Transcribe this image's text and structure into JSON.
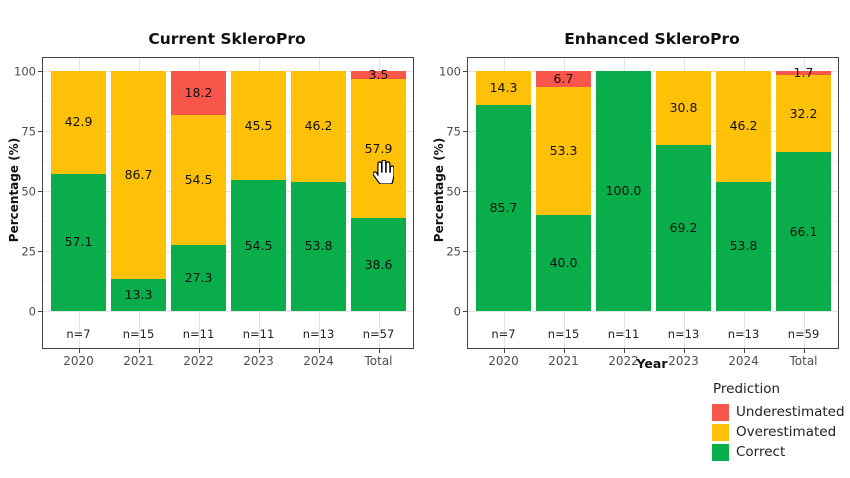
{
  "colors": {
    "correct": "#09ae4b",
    "overestimated": "#ffc107",
    "underestimated": "#f8564a",
    "grid_major": "#e4e4e4",
    "grid_minor": "#f3f3f3",
    "panel_border": "#454545",
    "tick_label": "#4d4d4d"
  },
  "legend": {
    "title": "Prediction",
    "items": [
      {
        "label": "Underestimated",
        "color_key": "underestimated"
      },
      {
        "label": "Overestimated",
        "color_key": "overestimated"
      },
      {
        "label": "Correct",
        "color_key": "correct"
      }
    ]
  },
  "icons": {
    "cursor": "open-hand-cursor"
  },
  "chart_data": [
    {
      "type": "bar",
      "stacked": true,
      "title": "Current SkleroPro",
      "xlabel": "",
      "ylabel": "Percentage (%)",
      "ylim": [
        0,
        100
      ],
      "yticks": [
        0,
        25,
        50,
        75,
        100
      ],
      "grid": true,
      "categories": [
        "2020",
        "2021",
        "2022",
        "2023",
        "2024",
        "Total"
      ],
      "n_labels": [
        "n=7",
        "n=15",
        "n=11",
        "n=11",
        "n=13",
        "n=57"
      ],
      "series": [
        {
          "name": "Correct",
          "color_key": "correct",
          "values": [
            57.1,
            13.3,
            27.3,
            54.5,
            53.8,
            38.6
          ]
        },
        {
          "name": "Overestimated",
          "color_key": "overestimated",
          "values": [
            42.9,
            86.7,
            54.5,
            45.5,
            46.2,
            57.9
          ]
        },
        {
          "name": "Underestimated",
          "color_key": "underestimated",
          "values": [
            0,
            0,
            18.2,
            0,
            0,
            3.5
          ]
        }
      ]
    },
    {
      "type": "bar",
      "stacked": true,
      "title": "Enhanced SkleroPro",
      "xlabel": "Year",
      "ylabel": "Percentage (%)",
      "ylim": [
        0,
        100
      ],
      "yticks": [
        0,
        25,
        50,
        75,
        100
      ],
      "grid": true,
      "categories": [
        "2020",
        "2021",
        "2022",
        "2023",
        "2024",
        "Total"
      ],
      "n_labels": [
        "n=7",
        "n=15",
        "n=11",
        "n=13",
        "n=13",
        "n=59"
      ],
      "series": [
        {
          "name": "Correct",
          "color_key": "correct",
          "values": [
            85.7,
            40.0,
            100.0,
            69.2,
            53.8,
            66.1
          ]
        },
        {
          "name": "Overestimated",
          "color_key": "overestimated",
          "values": [
            14.3,
            53.3,
            0,
            30.8,
            46.2,
            32.2
          ]
        },
        {
          "name": "Underestimated",
          "color_key": "underestimated",
          "values": [
            0,
            6.7,
            0,
            0,
            0,
            1.7
          ]
        }
      ]
    }
  ]
}
